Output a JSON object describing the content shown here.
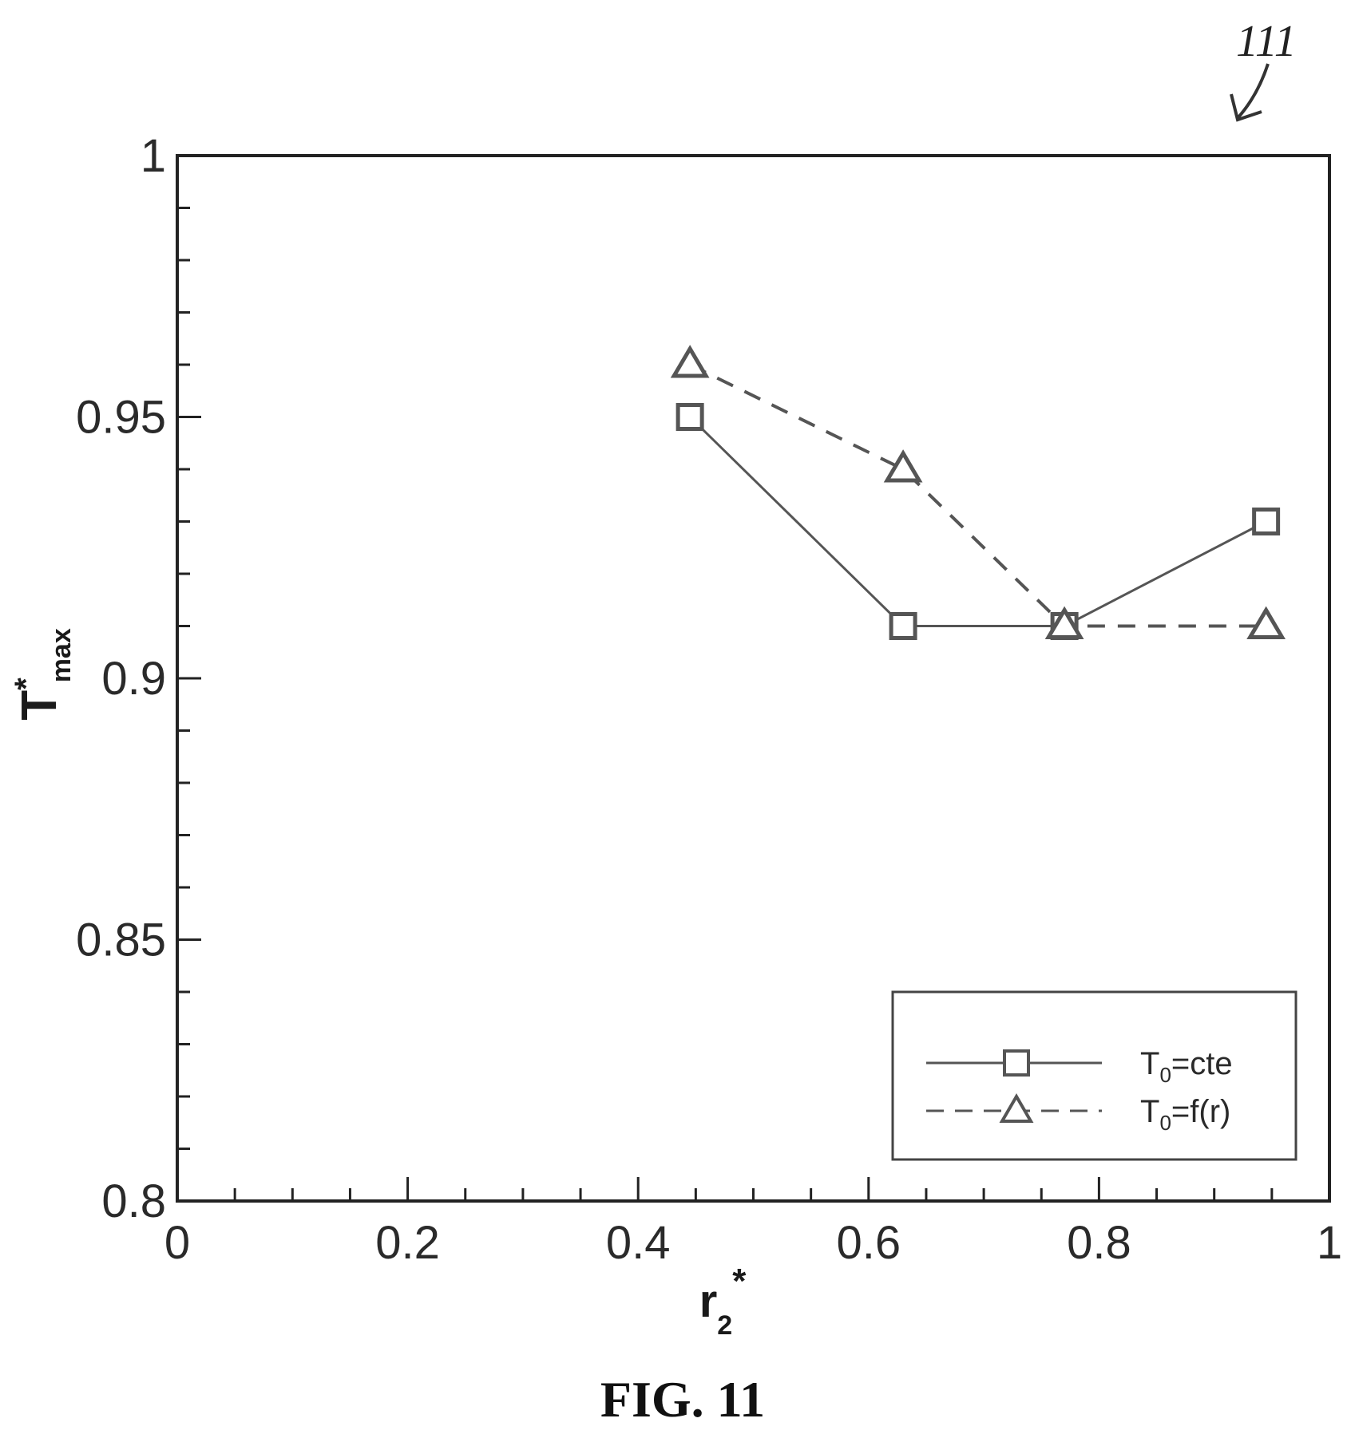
{
  "figure": {
    "caption": "FIG. 11",
    "reference_numeral": "111"
  },
  "chart_data": {
    "type": "line",
    "xlabel": {
      "main": "r",
      "sub": "2",
      "sup": "*"
    },
    "ylabel": {
      "main": "T",
      "sup": "*",
      "sub": "max"
    },
    "xlim": [
      0,
      1
    ],
    "ylim": [
      0.8,
      1
    ],
    "x_major_ticks": [
      0,
      0.2,
      0.4,
      0.6,
      0.8,
      1
    ],
    "x_tick_labels": [
      "0",
      "0.2",
      "0.4",
      "0.6",
      "0.8",
      "1"
    ],
    "x_minor_step": 0.05,
    "y_major_ticks": [
      0.8,
      0.85,
      0.9,
      0.95,
      1
    ],
    "y_tick_labels": [
      "0.8",
      "0.85",
      "0.9",
      "0.95",
      "1"
    ],
    "y_minor_step": 0.01,
    "grid": false,
    "legend_position": "bottom-right",
    "series": [
      {
        "name": {
          "main": "T",
          "sub": "0",
          "rest": "=cte"
        },
        "marker": "square",
        "line_style": "solid",
        "color": "#555555",
        "x": [
          0.445,
          0.63,
          0.77,
          0.945
        ],
        "y": [
          0.95,
          0.91,
          0.91,
          0.93
        ]
      },
      {
        "name": {
          "main": "T",
          "sub": "0",
          "rest": "=f(r)"
        },
        "marker": "triangle",
        "line_style": "dashed",
        "color": "#555555",
        "x": [
          0.445,
          0.63,
          0.77,
          0.945
        ],
        "y": [
          0.96,
          0.94,
          0.91,
          0.91
        ]
      }
    ]
  }
}
